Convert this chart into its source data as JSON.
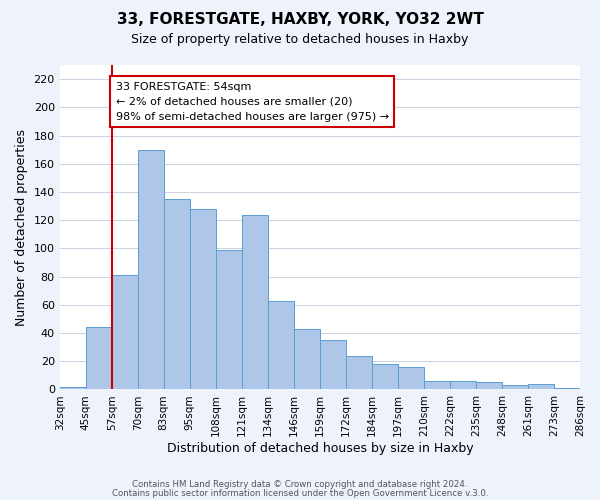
{
  "title": "33, FORESTGATE, HAXBY, YORK, YO32 2WT",
  "subtitle": "Size of property relative to detached houses in Haxby",
  "xlabel": "Distribution of detached houses by size in Haxby",
  "ylabel": "Number of detached properties",
  "bar_labels": [
    "32sqm",
    "45sqm",
    "57sqm",
    "70sqm",
    "83sqm",
    "95sqm",
    "108sqm",
    "121sqm",
    "134sqm",
    "146sqm",
    "159sqm",
    "172sqm",
    "184sqm",
    "197sqm",
    "210sqm",
    "222sqm",
    "235sqm",
    "248sqm",
    "261sqm",
    "273sqm",
    "286sqm"
  ],
  "bar_values": [
    2,
    44,
    81,
    170,
    135,
    128,
    99,
    124,
    63,
    43,
    35,
    24,
    18,
    16,
    6,
    6,
    5,
    3,
    4,
    1
  ],
  "bar_color": "#aec6e8",
  "bar_edge_color": "#5a9fd4",
  "ylim": [
    0,
    230
  ],
  "yticks": [
    0,
    20,
    40,
    60,
    80,
    100,
    120,
    140,
    160,
    180,
    200,
    220
  ],
  "vline_index": 2,
  "vline_color": "#cc0000",
  "annotation_title": "33 FORESTGATE: 54sqm",
  "annotation_line1": "← 2% of detached houses are smaller (20)",
  "annotation_line2": "98% of semi-detached houses are larger (975) →",
  "annotation_box_color": "#ffffff",
  "annotation_box_edge": "#cc0000",
  "footer1": "Contains HM Land Registry data © Crown copyright and database right 2024.",
  "footer2": "Contains public sector information licensed under the Open Government Licence v.3.0.",
  "background_color": "#eef2fb",
  "plot_bg_color": "#ffffff"
}
